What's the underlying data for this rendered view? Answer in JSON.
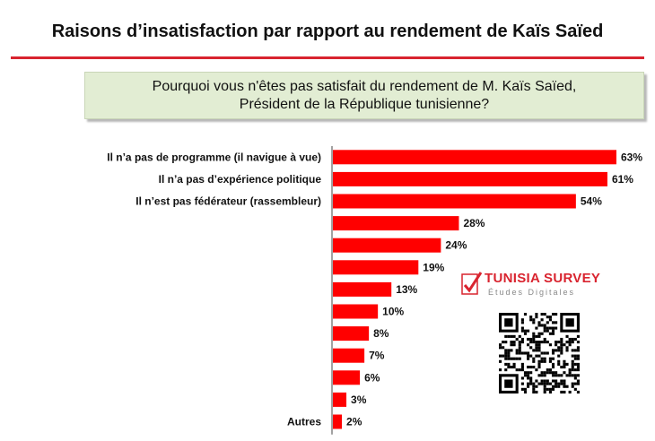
{
  "header": {
    "title": "Raisons d’insatisfaction par rapport au rendement  de Kaïs Saïed",
    "question": "Pourquoi vous n'êtes pas satisfait du rendement de M. Kaïs Saïed, Président de la République tunisienne?"
  },
  "brand": {
    "name": "TUNISIA SURVEY",
    "tagline": "Études Digitales",
    "color": "#d9242f"
  },
  "chart_data": {
    "type": "bar",
    "orientation": "horizontal",
    "categories": [
      "Il n’a pas de programme (il navigue à vue)",
      "Il n’a pas d’expérience politique",
      "Il n’est pas fédérateur (rassembleur)",
      "",
      "",
      "",
      "",
      "",
      "",
      "",
      "",
      "",
      "Autres"
    ],
    "values": [
      63,
      61,
      54,
      28,
      24,
      19,
      13,
      10,
      8,
      7,
      6,
      3,
      2
    ],
    "value_labels": [
      "63%",
      "61%",
      "54%",
      "28%",
      "24%",
      "19%",
      "13%",
      "10%",
      "8%",
      "7%",
      "6%",
      "3%",
      "2%"
    ],
    "unit": "%",
    "bar_color": "#ff0000",
    "xlim": [
      0,
      63
    ],
    "grid": false,
    "legend": "none"
  }
}
